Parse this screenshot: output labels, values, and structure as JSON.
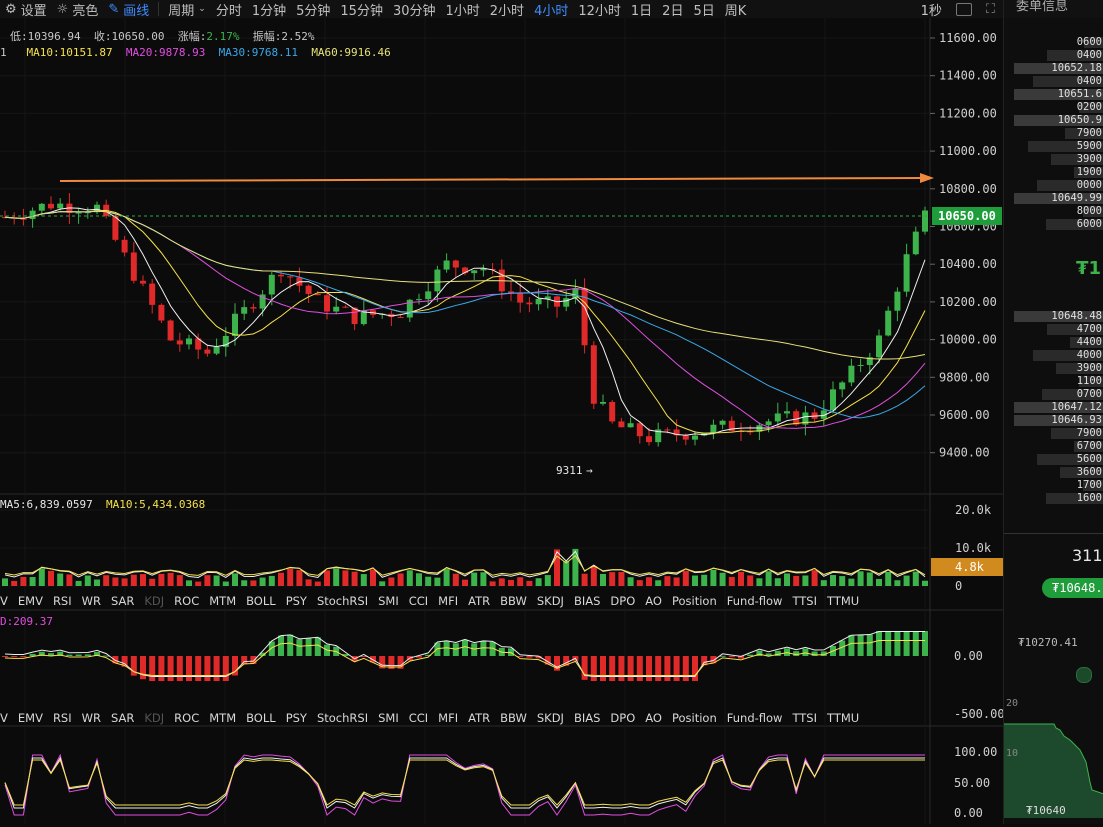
{
  "toolbar": {
    "settings": "设置",
    "brightness": "亮色",
    "draw": "画线",
    "period_menu": "周期",
    "periods": [
      "分时",
      "1分钟",
      "5分钟",
      "15分钟",
      "30分钟",
      "1小时",
      "2小时",
      "4小时",
      "12小时",
      "1日",
      "2日",
      "5日",
      "周K"
    ],
    "active_period": "4小时",
    "interval": "1秒"
  },
  "info": {
    "low": "低:10396.94",
    "close": "收:10650.00",
    "change": "涨幅:",
    "change_val": "2.17%",
    "amplitude": "振幅:",
    "amplitude_val": "2.52%",
    "ma10": "MA10:10151.87",
    "ma20": "MA20:9878.93",
    "ma30": "MA30:9768.11",
    "ma60": "MA60:9916.46",
    "prefix": "1"
  },
  "price_axis": [
    "11600.00",
    "11400.00",
    "11200.00",
    "11000.00",
    "10800.00",
    "10600.00",
    "10400.00",
    "10200.00",
    "10000.00",
    "9800.00",
    "9600.00",
    "9400.00"
  ],
  "current_price_label": "10650.00",
  "low_marker": "9311",
  "volume": {
    "ma5": "MA5:6,839.0597",
    "ma10": "MA10:5,434.0368",
    "axis": [
      "20.0k",
      "10.0k",
      "0"
    ],
    "current_label": "4.8k"
  },
  "indicator_tabs": [
    "V",
    "EMV",
    "RSI",
    "WR",
    "SAR",
    "KDJ",
    "ROC",
    "MTM",
    "BOLL",
    "PSY",
    "StochRSI",
    "SMI",
    "CCI",
    "MFI",
    "ATR",
    "BBW",
    "SKDJ",
    "BIAS",
    "DPO",
    "AO",
    "Position",
    "Fund-flow",
    "TTSI",
    "TTMU"
  ],
  "indicator_tabs_dim": [
    "KDJ"
  ],
  "macd": {
    "label": "D:209.37",
    "axis": [
      "0.00",
      "-500.00"
    ]
  },
  "kdj": {
    "axis": [
      "100.00",
      "50.00",
      "0.00"
    ]
  },
  "colors": {
    "up": "#3cb44b",
    "down": "#e02a2a",
    "ma5": "#f2f2f2",
    "ma10": "#f5e14b",
    "ma20": "#e04ee0",
    "ma30": "#3aa8e8",
    "ma60": "#e8e07a",
    "arrow": "#f08a3c"
  },
  "right_panel": {
    "title": "委单信息",
    "asks": [
      "0600",
      "0400",
      "10652.18",
      "0400",
      "10651.6",
      "0200",
      "10650.9",
      "7900",
      "5900",
      "3900",
      "1900",
      "0000",
      "10649.99",
      "8000",
      "6000"
    ],
    "bid_price_big": "₮1",
    "bids": [
      "10648.48",
      "4700",
      "4400",
      "4000",
      "3900",
      "1100",
      "0700",
      "10647.12",
      "10646.93",
      "7900",
      "6700",
      "5600",
      "3600",
      "1700",
      "1600"
    ],
    "last_trade": "311",
    "last_price_badge": "₮10648.4",
    "ref_price": "₮10270.41",
    "depth_axis": [
      "20",
      "10"
    ],
    "depth_price": "₮10640"
  }
}
